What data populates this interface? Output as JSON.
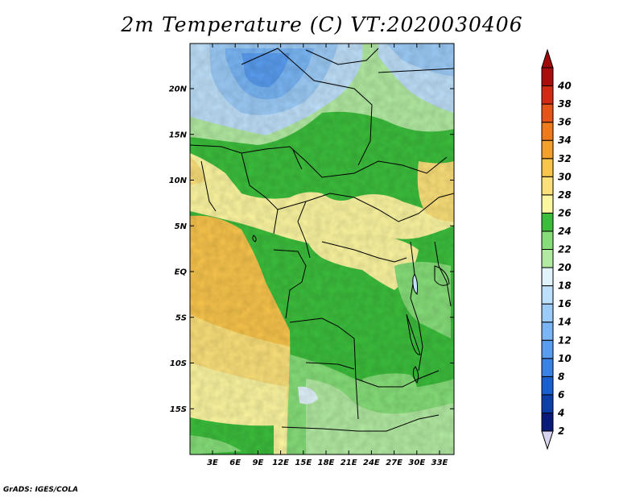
{
  "title": "2m Temperature (C) VT:2020030406",
  "footer": "GrADS: IGES/COLA",
  "map": {
    "lat_labels": [
      {
        "text": "20N",
        "lat": 20
      },
      {
        "text": "15N",
        "lat": 15
      },
      {
        "text": "10N",
        "lat": 10
      },
      {
        "text": "5N",
        "lat": 5
      },
      {
        "text": "EQ",
        "lat": 0
      },
      {
        "text": "5S",
        "lat": -5
      },
      {
        "text": "10S",
        "lat": -10
      },
      {
        "text": "15S",
        "lat": -15
      }
    ],
    "lon_labels": [
      {
        "text": "3E",
        "lon": 3
      },
      {
        "text": "6E",
        "lon": 6
      },
      {
        "text": "9E",
        "lon": 9
      },
      {
        "text": "12E",
        "lon": 12
      },
      {
        "text": "15E",
        "lon": 15
      },
      {
        "text": "18E",
        "lon": 18
      },
      {
        "text": "21E",
        "lon": 21
      },
      {
        "text": "24E",
        "lon": 24
      },
      {
        "text": "27E",
        "lon": 27
      },
      {
        "text": "30E",
        "lon": 30
      },
      {
        "text": "33E",
        "lon": 33
      }
    ]
  },
  "colorbar": {
    "labels": [
      "2",
      "4",
      "6",
      "8",
      "10",
      "12",
      "14",
      "16",
      "18",
      "20",
      "22",
      "24",
      "26",
      "28",
      "30",
      "32",
      "34",
      "36",
      "38",
      "40"
    ],
    "colors": [
      "#0a1a78",
      "#0c3fa8",
      "#1a5fd0",
      "#3a82e6",
      "#5a9df0",
      "#7ab6f5",
      "#9ccbf7",
      "#bfe0fa",
      "#e2f4fb",
      "#b2eaa2",
      "#86dd79",
      "#3cbe3c",
      "#fcf6a0",
      "#fbe07a",
      "#f8c54c",
      "#f3a02c",
      "#ee7a1c",
      "#e6541a",
      "#d22a14",
      "#a80e0e"
    ],
    "under_color": "#d8d4f0",
    "over_color": "#a00a0a"
  }
}
